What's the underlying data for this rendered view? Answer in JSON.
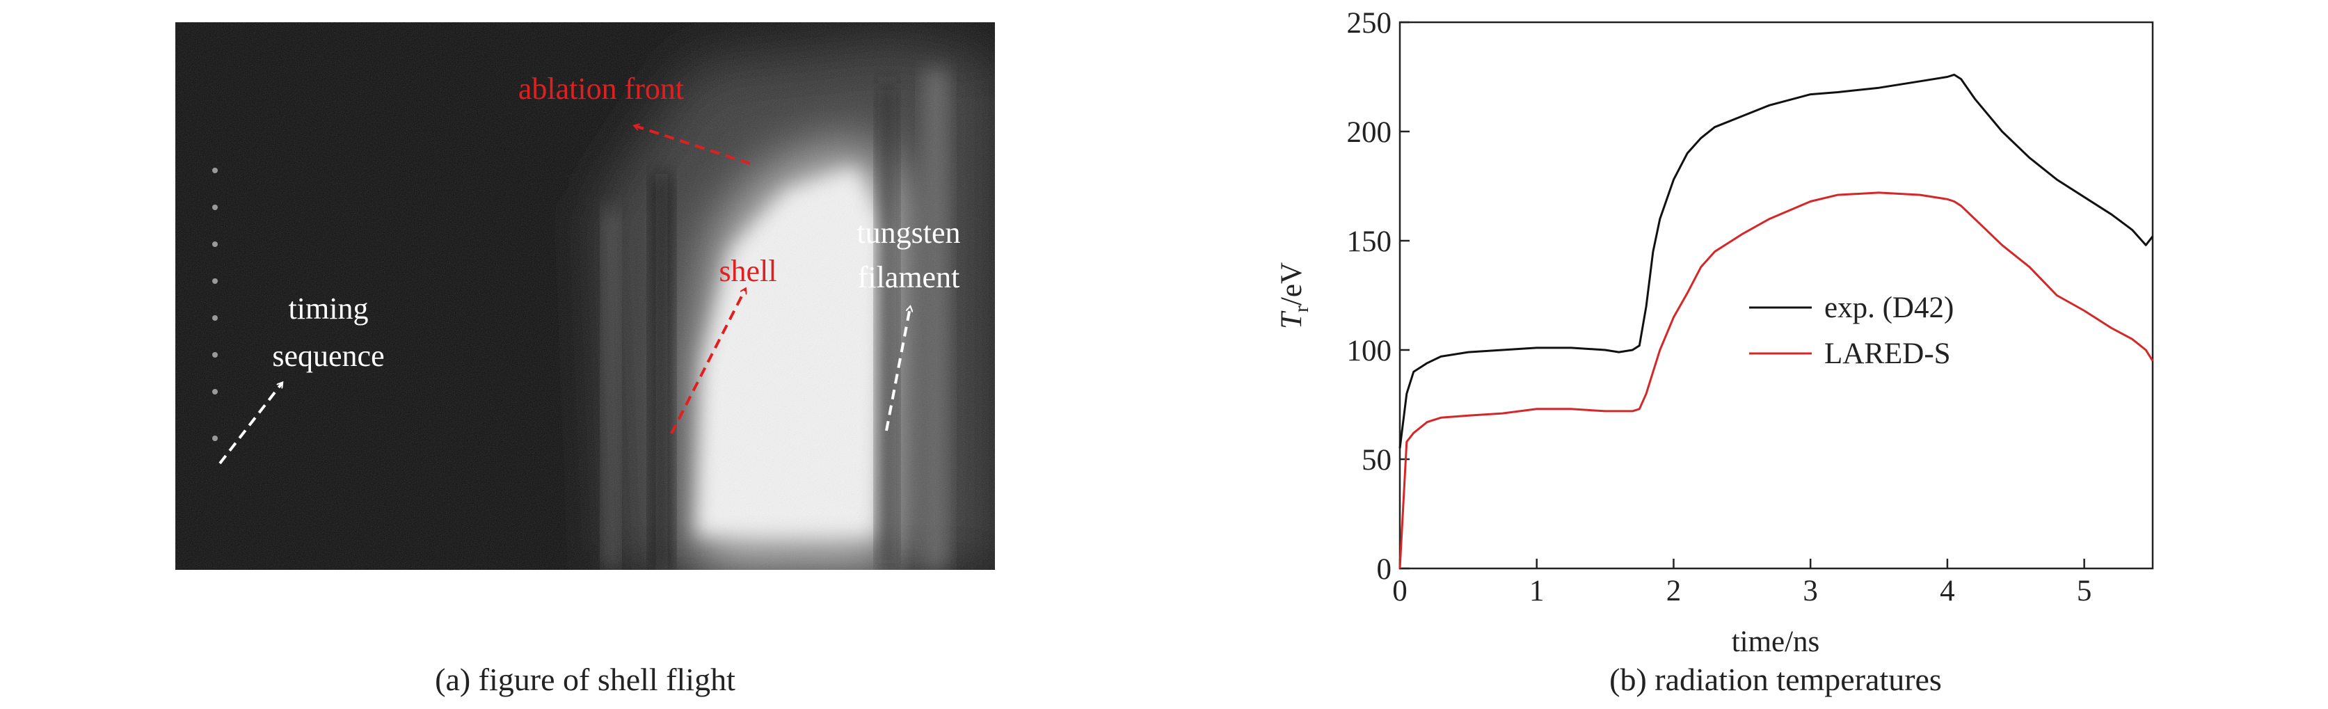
{
  "image_panel": {
    "caption": "(a) figure of shell flight",
    "annotations": [
      {
        "text": "ablation front"
      },
      {
        "text": "shell"
      },
      {
        "lines": [
          "tungsten",
          "filament"
        ]
      },
      {
        "lines": [
          "timing",
          "sequence"
        ]
      }
    ]
  },
  "chart_data": {
    "type": "line",
    "caption": "(b) radiation temperatures",
    "xlabel": "time/ns",
    "ylabel_parts": [
      "T",
      "r",
      "/eV"
    ],
    "x": [
      0,
      0.05,
      0.1,
      0.2,
      0.3,
      0.5,
      0.75,
      1.0,
      1.25,
      1.5,
      1.6,
      1.7,
      1.75,
      1.8,
      1.85,
      1.9,
      2.0,
      2.1,
      2.2,
      2.3,
      2.5,
      2.7,
      3.0,
      3.2,
      3.5,
      3.8,
      4.0,
      4.05,
      4.1,
      4.2,
      4.4,
      4.6,
      4.8,
      5.0,
      5.2,
      5.35,
      5.45,
      5.5
    ],
    "series": [
      {
        "name": "exp. (D42)",
        "color": "#111111",
        "values": [
          55,
          80,
          90,
          94,
          97,
          99,
          100,
          101,
          101,
          100,
          99,
          100,
          102,
          120,
          145,
          160,
          178,
          190,
          197,
          202,
          207,
          212,
          217,
          218,
          220,
          223,
          225,
          226,
          224,
          215,
          200,
          188,
          178,
          170,
          162,
          155,
          148,
          152
        ]
      },
      {
        "name": "LARED-S",
        "color": "#d62728",
        "values": [
          0,
          58,
          62,
          67,
          69,
          70,
          71,
          73,
          73,
          72,
          72,
          72,
          73,
          80,
          90,
          100,
          115,
          126,
          138,
          145,
          153,
          160,
          168,
          171,
          172,
          171,
          169,
          168,
          166,
          160,
          148,
          138,
          125,
          118,
          110,
          105,
          100,
          95
        ]
      }
    ],
    "xlim": [
      0,
      5.5
    ],
    "xticks": [
      0,
      1,
      2,
      3,
      4,
      5
    ],
    "ylim": [
      0,
      250
    ],
    "yticks": [
      0,
      50,
      100,
      150,
      200,
      250
    ]
  }
}
